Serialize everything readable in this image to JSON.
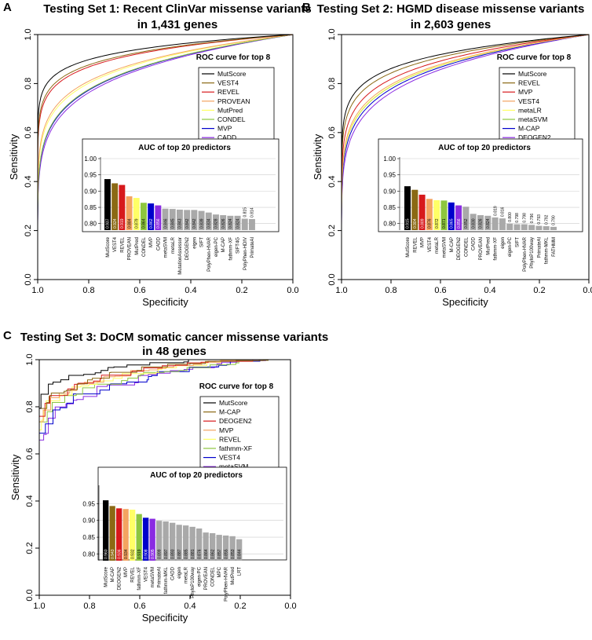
{
  "chart_data": [
    {
      "panel": "A",
      "type": "line",
      "title_line1": "Testing Set 1: Recent ClinVar missense variants",
      "title_line2": "in 1,431 genes",
      "xlabel": "Specificity",
      "ylabel": "Sensitivity",
      "xlim": [
        1.0,
        0.0
      ],
      "ylim": [
        0.0,
        1.0
      ],
      "xticks": [
        "1.0",
        "0.8",
        "0.6",
        "0.4",
        "0.2",
        "0.0"
      ],
      "yticks": [
        "0.0",
        "0.2",
        "0.4",
        "0.6",
        "0.8",
        "1.0"
      ],
      "legend_title": "ROC curve for top 8",
      "series": [
        {
          "name": "MutScore",
          "color": "#000000",
          "auc": 0.937
        },
        {
          "name": "VEST4",
          "color": "#8B6914",
          "auc": 0.924
        },
        {
          "name": "REVEL",
          "color": "#D7191C",
          "auc": 0.919
        },
        {
          "name": "PROVEAN",
          "color": "#F4A460",
          "auc": 0.884
        },
        {
          "name": "MutPred",
          "color": "#FFFF66",
          "auc": 0.879
        },
        {
          "name": "CONDEL",
          "color": "#8DC63F",
          "auc": 0.864
        },
        {
          "name": "MVP",
          "color": "#0000CC",
          "auc": 0.862
        },
        {
          "name": "CADD",
          "color": "#8A2BE2",
          "auc": 0.856
        }
      ],
      "inset": {
        "type": "bar",
        "title": "AUC of top 20 predictors",
        "ylim": [
          0.78,
          1.0
        ],
        "yticks": [
          "0.80",
          "0.85",
          "0.90",
          "0.95",
          "1.00"
        ],
        "categories": [
          "MutScore",
          "VEST4",
          "REVEL",
          "PROVEAN",
          "MutPred",
          "CONDEL",
          "MVP",
          "CADD",
          "metaSVM",
          "metaLR",
          "MutationAssessor",
          "DEOGEN2",
          "eigen",
          "SIFT",
          "PolyPhen-HVAR",
          "eigen-PC",
          "M-CAP",
          "fathmm-XF",
          "SIFT4G",
          "PolyPhen-HDIV",
          "PrimateAI"
        ],
        "values": [
          0.937,
          0.924,
          0.919,
          0.884,
          0.879,
          0.864,
          0.862,
          0.856,
          0.846,
          0.845,
          0.843,
          0.842,
          0.842,
          0.839,
          0.834,
          0.828,
          0.826,
          0.824,
          0.824,
          0.815,
          0.814
        ],
        "labels": [
          "0.937",
          "0.924",
          "0.919",
          "0.884",
          "0.879",
          "0.864",
          "0.862",
          "0.856",
          "0.846",
          "0.845",
          "0.843",
          "0.842",
          "0.842",
          "0.839",
          "0.834",
          "0.828",
          "0.826",
          "0.824",
          "0.824",
          "0.815",
          "0.814"
        ]
      }
    },
    {
      "panel": "B",
      "type": "line",
      "title_line1": "Testing Set 2: HGMD disease missense variants",
      "title_line2": "in 2,603 genes",
      "xlabel": "Specificity",
      "ylabel": "Sensitivity",
      "xlim": [
        1.0,
        0.0
      ],
      "ylim": [
        0.0,
        1.0
      ],
      "xticks": [
        "1.0",
        "0.8",
        "0.6",
        "0.4",
        "0.2",
        "0.0"
      ],
      "yticks": [
        "0.0",
        "0.2",
        "0.4",
        "0.6",
        "0.8",
        "1.0"
      ],
      "legend_title": "ROC curve for top 8",
      "series": [
        {
          "name": "MutScore",
          "color": "#000000",
          "auc": 0.915
        },
        {
          "name": "REVEL",
          "color": "#8B6914",
          "auc": 0.904
        },
        {
          "name": "MVP",
          "color": "#D7191C",
          "auc": 0.889
        },
        {
          "name": "VEST4",
          "color": "#F4A460",
          "auc": 0.876
        },
        {
          "name": "metaLR",
          "color": "#FFFF66",
          "auc": 0.872
        },
        {
          "name": "metaSVM",
          "color": "#8DC63F",
          "auc": 0.871
        },
        {
          "name": "M-CAP",
          "color": "#0000CC",
          "auc": 0.865
        },
        {
          "name": "DEOGEN2",
          "color": "#8A2BE2",
          "auc": 0.856
        }
      ],
      "inset": {
        "type": "bar",
        "title": "AUC of top 20 predictors",
        "ylim": [
          0.78,
          1.0
        ],
        "yticks": [
          "0.80",
          "0.85",
          "0.90",
          "0.95",
          "1.00"
        ],
        "categories": [
          "MutScore",
          "REVEL",
          "MVP",
          "VEST4",
          "metaLR",
          "metaSVM",
          "M-CAP",
          "DEOGEN2",
          "CONDEL",
          "CADD",
          "PROVEAN",
          "MutPred",
          "fathmm-XF",
          "eigen",
          "eigen-PC",
          "SIFT",
          "PolyPhen-HVAR",
          "PhyloP100way",
          "PrimateAI",
          "fathmm-MKL",
          "FATHMM"
        ],
        "values": [
          0.915,
          0.904,
          0.889,
          0.876,
          0.872,
          0.871,
          0.865,
          0.856,
          0.852,
          0.83,
          0.826,
          0.824,
          0.819,
          0.816,
          0.8,
          0.798,
          0.798,
          0.796,
          0.793,
          0.792,
          0.79
        ],
        "labels": [
          "0.915",
          "0.904",
          "0.889",
          "0.876",
          "0.872",
          "0.871",
          "0.865",
          "0.856",
          "0.852",
          "0.830",
          "0.826",
          "0.824",
          "0.819",
          "0.816",
          "0.800",
          "0.798",
          "0.798",
          "0.796",
          "0.793",
          "0.792",
          "0.790"
        ]
      }
    },
    {
      "panel": "C",
      "type": "line",
      "title_line1": "Testing Set 3: DoCM somatic cancer missense variants",
      "title_line2": "in 48 genes",
      "xlabel": "Specificity",
      "ylabel": "Sensitivity",
      "xlim": [
        1.0,
        0.0
      ],
      "ylim": [
        0.0,
        1.0
      ],
      "xticks": [
        "1.0",
        "0.8",
        "0.6",
        "0.4",
        "0.2",
        "0.0"
      ],
      "yticks": [
        "0.0",
        "0.2",
        "0.4",
        "0.6",
        "0.8",
        "1.0"
      ],
      "legend_title": "ROC curve for top 8",
      "series": [
        {
          "name": "MutScore",
          "color": "#000000",
          "auc": 0.96
        },
        {
          "name": "M-CAP",
          "color": "#8B6914",
          "auc": 0.943
        },
        {
          "name": "DEOGEN2",
          "color": "#D7191C",
          "auc": 0.936
        },
        {
          "name": "MVP",
          "color": "#F4A460",
          "auc": 0.934
        },
        {
          "name": "REVEL",
          "color": "#FFFF66",
          "auc": 0.932
        },
        {
          "name": "fathmm-XF",
          "color": "#8DC63F",
          "auc": 0.919
        },
        {
          "name": "VEST4",
          "color": "#0000CC",
          "auc": 0.908
        },
        {
          "name": "metaSVM",
          "color": "#8A2BE2",
          "auc": 0.905
        }
      ],
      "inset": {
        "type": "bar",
        "title": "AUC of top 20 predictors",
        "ylim": [
          0.78,
          1.0
        ],
        "yticks": [
          "0.80",
          "0.85",
          "0.90",
          "0.95"
        ],
        "categories": [
          "MutScore",
          "M-CAP",
          "DEOGEN2",
          "MVP",
          "REVEL",
          "fathmm-XF",
          "VEST4",
          "metaSVM",
          "PrimateAI",
          "fathmm-MKL",
          "CADD",
          "eigen",
          "metaLR",
          "PhyloP100way",
          "eigen-PC",
          "PROVEAN",
          "CONDEL",
          "MPC",
          "PolyPhen-HVAR",
          "MutPred",
          "LRT"
        ],
        "values": [
          0.96,
          0.943,
          0.936,
          0.934,
          0.932,
          0.919,
          0.908,
          0.905,
          0.899,
          0.897,
          0.893,
          0.887,
          0.885,
          0.881,
          0.876,
          0.864,
          0.862,
          0.857,
          0.855,
          0.853,
          0.844
        ],
        "labels": [
          "0.960",
          "0.943",
          "0.936",
          "0.934",
          "0.932",
          "0.919",
          "0.908",
          "0.905",
          "0.899",
          "0.897",
          "0.893",
          "0.887",
          "0.885",
          "0.881",
          "0.876",
          "0.864",
          "0.862",
          "0.857",
          "0.855",
          "0.853",
          "0.844"
        ]
      }
    }
  ]
}
